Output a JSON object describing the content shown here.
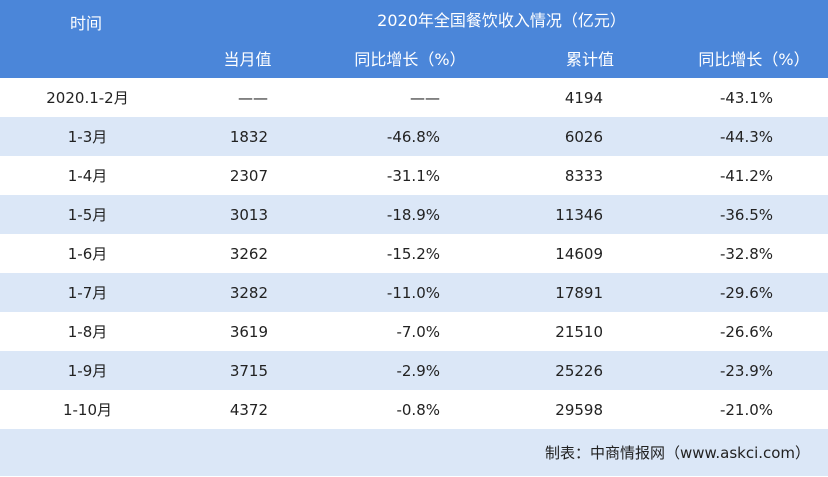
{
  "header": {
    "title": "2020年全国餐饮收入情况（亿元）",
    "time_label": "时间",
    "columns": [
      "当月值",
      "同比增长（%）",
      "累计值",
      "同比增长（%）"
    ]
  },
  "table": {
    "rows": [
      [
        "2020.1-2月",
        "——",
        "——",
        "4194",
        "-43.1%"
      ],
      [
        "1-3月",
        "1832",
        "-46.8%",
        "6026",
        "-44.3%"
      ],
      [
        "1-4月",
        "2307",
        "-31.1%",
        "8333",
        "-41.2%"
      ],
      [
        "1-5月",
        "3013",
        "-18.9%",
        "11346",
        "-36.5%"
      ],
      [
        "1-6月",
        "3262",
        "-15.2%",
        "14609",
        "-32.8%"
      ],
      [
        "1-7月",
        "3282",
        "-11.0%",
        "17891",
        "-29.6%"
      ],
      [
        "1-8月",
        "3619",
        "-7.0%",
        "21510",
        "-26.6%"
      ],
      [
        "1-9月",
        "3715",
        "-2.9%",
        "25226",
        "-23.9%"
      ],
      [
        "1-10月",
        "4372",
        "-0.8%",
        "29598",
        "-21.0%"
      ]
    ]
  },
  "footer": {
    "source": "制表：中商情报网（www.askci.com）"
  }
}
